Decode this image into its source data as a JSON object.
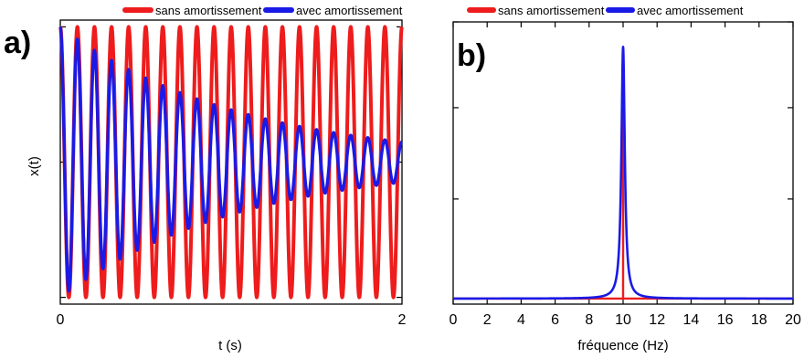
{
  "chart_data": [
    {
      "type": "line",
      "panel_label": "a)",
      "xlabel": "t (s)",
      "ylabel": "x(t)",
      "xlim": [
        0,
        2
      ],
      "ylim": [
        -1.05,
        1.05
      ],
      "x_tick_labels": [
        "0",
        "2"
      ],
      "y_ticks_unlabeled": [
        -1,
        0,
        1
      ],
      "grid": false,
      "legend": {
        "position": "top",
        "entries": [
          "sans amortissement",
          "avec amortissement"
        ]
      },
      "series": [
        {
          "name": "sans amortissement",
          "color": "#ee1c1c",
          "model": "cosine",
          "amplitude": 1.0,
          "frequency_hz": 10,
          "damping_per_s": 0
        },
        {
          "name": "avec amortissement",
          "color": "#1a1ae6",
          "model": "cosine",
          "amplitude": 1.0,
          "frequency_hz": 10,
          "damping_per_s": 0.95
        }
      ]
    },
    {
      "type": "line",
      "panel_label": "b)",
      "xlabel": "fréquence (Hz)",
      "ylabel": "",
      "xlim": [
        0,
        20
      ],
      "ylim": [
        -0.02,
        1.0
      ],
      "x_tick_labels": [
        "0",
        "2",
        "4",
        "6",
        "8",
        "10",
        "12",
        "14",
        "16",
        "18",
        "20"
      ],
      "y_ticks_unlabeled": [
        0,
        0.36,
        0.69,
        1.0
      ],
      "grid": false,
      "legend": {
        "position": "top",
        "entries": [
          "sans amortissement",
          "avec amortissement"
        ]
      },
      "series": [
        {
          "name": "sans amortissement",
          "color": "#ee1c1c",
          "model": "spectral_line",
          "peak_hz": 10,
          "peak_height": 0.75
        },
        {
          "name": "avec amortissement",
          "color": "#1a1ae6",
          "model": "lorentzian",
          "peak_hz": 10,
          "peak_height": 0.91,
          "half_width_hz": 0.12
        }
      ]
    }
  ]
}
